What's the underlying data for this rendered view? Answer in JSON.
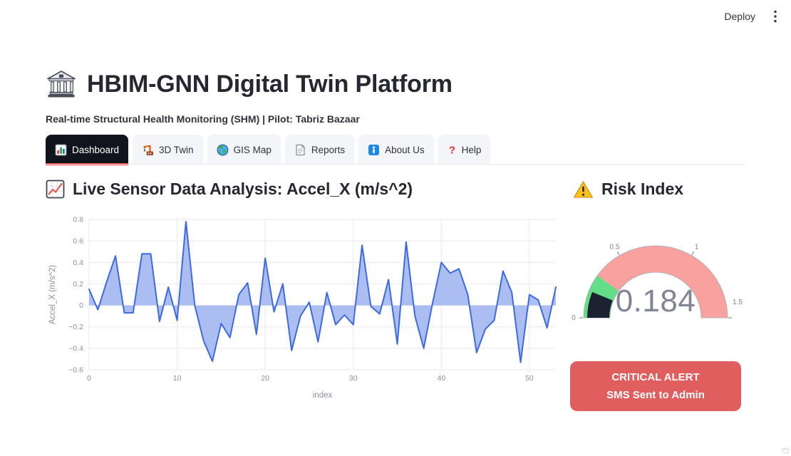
{
  "header": {
    "deploy_label": "Deploy"
  },
  "hero": {
    "title": "HBIM-GNN Digital Twin Platform",
    "subtitle": "Real-time Structural Health Monitoring (SHM) | Pilot: Tabriz Bazaar"
  },
  "tabs": [
    {
      "label": "Dashboard",
      "icon": "bar-chart-icon",
      "active": true
    },
    {
      "label": "3D Twin",
      "icon": "construction-icon",
      "active": false
    },
    {
      "label": "GIS Map",
      "icon": "globe-icon",
      "active": false
    },
    {
      "label": "Reports",
      "icon": "document-icon",
      "active": false
    },
    {
      "label": "About Us",
      "icon": "info-icon",
      "active": false
    },
    {
      "label": "Help",
      "icon": "question-icon",
      "active": false
    }
  ],
  "sensor_section": {
    "heading": "Live Sensor Data Analysis: Accel_X (m/s^2)"
  },
  "risk_section": {
    "heading": "Risk Index",
    "value_display": "0.184",
    "alert": {
      "line1": "CRITICAL ALERT",
      "line2": "SMS Sent to Admin",
      "color": "#e05e5e"
    }
  },
  "chart_data": [
    {
      "type": "area",
      "title": "Live Sensor Data Analysis: Accel_X (m/s^2)",
      "xlabel": "index",
      "ylabel": "Accel_X (m/s^2)",
      "x": [
        0,
        1,
        2,
        3,
        4,
        5,
        6,
        7,
        8,
        9,
        10,
        11,
        12,
        13,
        14,
        15,
        16,
        17,
        18,
        19,
        20,
        21,
        22,
        23,
        24,
        25,
        26,
        27,
        28,
        29,
        30,
        31,
        32,
        33,
        34,
        35,
        36,
        37,
        38,
        39,
        40,
        41,
        42,
        43,
        44,
        45,
        46,
        47,
        48,
        49,
        50,
        51,
        52,
        53
      ],
      "values": [
        0.15,
        -0.04,
        0.22,
        0.46,
        -0.07,
        -0.07,
        0.48,
        0.48,
        -0.15,
        0.17,
        -0.14,
        0.78,
        0.0,
        -0.33,
        -0.52,
        -0.17,
        -0.3,
        0.1,
        0.21,
        -0.27,
        0.44,
        -0.06,
        0.2,
        -0.42,
        -0.1,
        0.03,
        -0.34,
        0.12,
        -0.18,
        -0.09,
        -0.18,
        0.56,
        -0.01,
        -0.08,
        0.24,
        -0.36,
        0.59,
        -0.1,
        -0.4,
        0.02,
        0.4,
        0.3,
        0.34,
        0.1,
        -0.44,
        -0.22,
        -0.14,
        0.32,
        0.12,
        -0.53,
        0.1,
        0.05,
        -0.21,
        0.17
      ],
      "ylim": [
        -0.6,
        0.8
      ],
      "yticks": [
        0.8,
        0.6,
        0.4,
        0.2,
        0,
        -0.2,
        -0.4,
        -0.6
      ],
      "xticks": [
        0,
        10,
        20,
        30,
        40,
        50
      ],
      "grid": true,
      "legend": "none",
      "line_color": "#3f69e0",
      "fill_color": "#aabef2",
      "tick_color": "#8b90a0"
    },
    {
      "type": "gauge",
      "value": 0.184,
      "range": [
        0,
        1.5
      ],
      "ticks": [
        0,
        0.5,
        1,
        1.5
      ],
      "steps": [
        {
          "range": [
            0,
            0.3
          ],
          "color": "#64dd87"
        },
        {
          "range": [
            0.3,
            1.5
          ],
          "color": "#f8a19e"
        }
      ],
      "bar_color": "#1b2330",
      "number_color": "#808495",
      "outline_color": "#b0b3ba"
    }
  ]
}
